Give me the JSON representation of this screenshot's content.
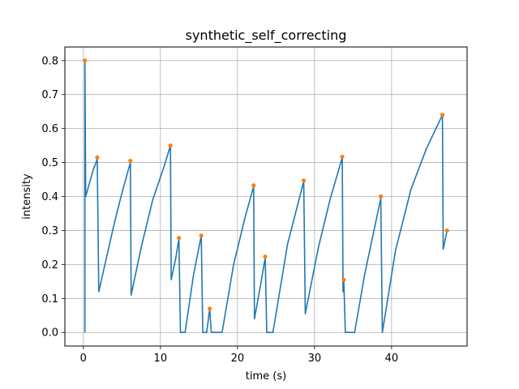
{
  "chart_data": {
    "type": "line",
    "title": "synthetic_self_correcting",
    "xlabel": "time (s)",
    "ylabel": "intensity",
    "xlim": [
      -2.4,
      49.8
    ],
    "ylim": [
      -0.04,
      0.84
    ],
    "xticks": [
      0,
      10,
      20,
      30,
      40
    ],
    "yticks": [
      0.0,
      0.1,
      0.2,
      0.3,
      0.4,
      0.5,
      0.6,
      0.7,
      0.8
    ],
    "grid": true,
    "colors": {
      "line": "#1f77b4",
      "events": "#ff7f0e",
      "grid": "#b0b0b0"
    },
    "series": [
      {
        "type": "line",
        "points": [
          [
            0.2,
            0.0
          ],
          [
            0.2,
            0.8
          ],
          [
            0.3,
            0.4
          ],
          [
            0.8,
            0.44
          ],
          [
            1.3,
            0.48
          ],
          [
            1.8,
            0.51
          ],
          [
            1.8,
            0.51
          ],
          [
            2.0,
            0.12
          ],
          [
            3.0,
            0.22
          ],
          [
            4.0,
            0.32
          ],
          [
            5.0,
            0.41
          ],
          [
            6.1,
            0.5
          ],
          [
            6.1,
            0.5
          ],
          [
            6.2,
            0.11
          ],
          [
            7.5,
            0.25
          ],
          [
            9.0,
            0.39
          ],
          [
            10.5,
            0.49
          ],
          [
            11.3,
            0.55
          ],
          [
            11.3,
            0.55
          ],
          [
            11.4,
            0.155
          ],
          [
            12.0,
            0.22
          ],
          [
            12.4,
            0.275
          ],
          [
            12.4,
            0.275
          ],
          [
            12.6,
            0.0
          ],
          [
            13.2,
            0.0
          ],
          [
            14.3,
            0.17
          ],
          [
            15.3,
            0.285
          ],
          [
            15.3,
            0.285
          ],
          [
            15.5,
            0.0
          ],
          [
            16.0,
            0.0
          ],
          [
            16.4,
            0.07
          ],
          [
            16.4,
            0.07
          ],
          [
            16.6,
            0.0
          ],
          [
            18.0,
            0.0
          ],
          [
            19.5,
            0.2
          ],
          [
            21.0,
            0.34
          ],
          [
            22.1,
            0.43
          ],
          [
            22.1,
            0.43
          ],
          [
            22.2,
            0.04
          ],
          [
            23.0,
            0.14
          ],
          [
            23.6,
            0.22
          ],
          [
            23.6,
            0.22
          ],
          [
            23.8,
            0.0
          ],
          [
            24.6,
            0.0
          ],
          [
            26.5,
            0.26
          ],
          [
            28.6,
            0.445
          ],
          [
            28.6,
            0.445
          ],
          [
            28.8,
            0.055
          ],
          [
            30.5,
            0.25
          ],
          [
            32.0,
            0.39
          ],
          [
            33.6,
            0.515
          ],
          [
            33.6,
            0.515
          ],
          [
            33.7,
            0.12
          ],
          [
            33.8,
            0.15
          ],
          [
            33.8,
            0.15
          ],
          [
            34.0,
            0.0
          ],
          [
            35.2,
            0.0
          ],
          [
            36.5,
            0.17
          ],
          [
            38.6,
            0.395
          ],
          [
            38.6,
            0.395
          ],
          [
            38.8,
            0.0
          ],
          [
            40.5,
            0.24
          ],
          [
            42.5,
            0.42
          ],
          [
            44.5,
            0.54
          ],
          [
            46.6,
            0.64
          ],
          [
            46.6,
            0.64
          ],
          [
            46.7,
            0.245
          ],
          [
            47.2,
            0.3
          ]
        ]
      },
      {
        "type": "scatter",
        "points": [
          [
            0.2,
            0.8
          ],
          [
            1.8,
            0.515
          ],
          [
            6.1,
            0.505
          ],
          [
            11.3,
            0.55
          ],
          [
            12.4,
            0.278
          ],
          [
            15.3,
            0.285
          ],
          [
            16.4,
            0.07
          ],
          [
            22.1,
            0.433
          ],
          [
            23.6,
            0.223
          ],
          [
            28.6,
            0.447
          ],
          [
            33.6,
            0.517
          ],
          [
            33.8,
            0.155
          ],
          [
            38.6,
            0.4
          ],
          [
            46.6,
            0.64
          ],
          [
            47.2,
            0.3
          ]
        ]
      }
    ]
  }
}
